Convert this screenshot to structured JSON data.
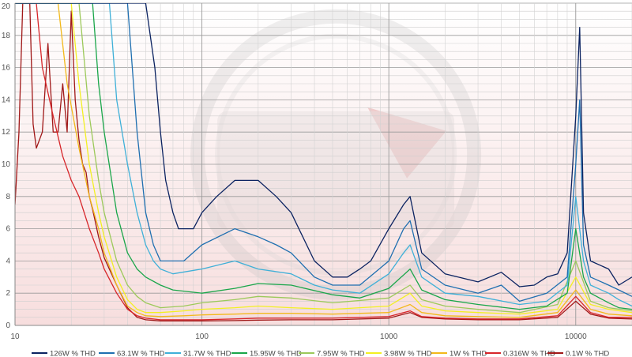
{
  "chart_data": {
    "type": "line",
    "title": "",
    "xlabel": "",
    "ylabel": "",
    "x_scale": "log",
    "xlim": [
      10,
      20000
    ],
    "ylim": [
      0,
      20
    ],
    "grid": true,
    "legend_position": "bottom",
    "x_ticks": [
      {
        "value": 10,
        "label": "10"
      },
      {
        "value": 100,
        "label": "100"
      },
      {
        "value": 1000,
        "label": "1000"
      },
      {
        "value": 10000,
        "label": "10000"
      }
    ],
    "y_ticks": [
      {
        "value": 0,
        "label": "0"
      },
      {
        "value": 2,
        "label": "2"
      },
      {
        "value": 4,
        "label": "4"
      },
      {
        "value": 6,
        "label": "6"
      },
      {
        "value": 8,
        "label": "8"
      },
      {
        "value": 10,
        "label": "10"
      },
      {
        "value": 12,
        "label": "12"
      },
      {
        "value": 14,
        "label": "14"
      },
      {
        "value": 16,
        "label": "16"
      },
      {
        "value": 18,
        "label": "18"
      },
      {
        "value": 20,
        "label": "20"
      }
    ],
    "series": [
      {
        "name": "126W % THD",
        "color": "#0b2361",
        "x": [
          10,
          50,
          56,
          60,
          64,
          70,
          75,
          80,
          90,
          100,
          120,
          150,
          200,
          250,
          300,
          400,
          500,
          600,
          700,
          800,
          1000,
          1200,
          1300,
          1500,
          2000,
          3000,
          4000,
          5000,
          6000,
          7000,
          8000,
          9000,
          10000,
          10500,
          11000,
          12000,
          15000,
          17000,
          20000
        ],
        "y": [
          20,
          20,
          16,
          12,
          9,
          7,
          6,
          6,
          6,
          7,
          8,
          9,
          9,
          8,
          7,
          4,
          3,
          3,
          3.5,
          4,
          6,
          7.5,
          8,
          4.5,
          3.2,
          2.7,
          3.3,
          2.4,
          2.5,
          3,
          3.2,
          4.5,
          13,
          18.5,
          7,
          4,
          3.5,
          2.5,
          3
        ]
      },
      {
        "name": "63.1W % THD",
        "color": "#1f6fb0",
        "x": [
          10,
          40,
          45,
          50,
          55,
          60,
          70,
          80,
          100,
          150,
          200,
          250,
          300,
          400,
          500,
          700,
          1000,
          1200,
          1300,
          1500,
          2000,
          3000,
          4000,
          5000,
          7000,
          9000,
          10000,
          10500,
          11000,
          12000,
          15000,
          17000,
          20000
        ],
        "y": [
          20,
          20,
          12,
          7,
          5,
          4,
          4,
          4,
          5,
          6,
          5.5,
          5,
          4.5,
          3,
          2.5,
          2.5,
          4,
          6,
          6.5,
          3.5,
          2.5,
          2,
          2.5,
          1.5,
          2,
          3,
          10,
          14,
          5,
          3,
          2.5,
          2.2,
          1.8
        ]
      },
      {
        "name": "31.7W % THD",
        "color": "#3fb0d8",
        "x": [
          10,
          32,
          35,
          40,
          45,
          50,
          55,
          60,
          70,
          100,
          150,
          200,
          300,
          400,
          500,
          700,
          1000,
          1200,
          1300,
          1500,
          2000,
          3000,
          5000,
          7000,
          9000,
          10000,
          11000,
          12000,
          15000,
          17000,
          20000
        ],
        "y": [
          20,
          20,
          14,
          10,
          7,
          5,
          4,
          3.5,
          3.2,
          3.5,
          4,
          3.5,
          3.2,
          2.5,
          2.2,
          2,
          3.2,
          4.5,
          5,
          3,
          2,
          1.8,
          1.3,
          1.5,
          2.5,
          8,
          4,
          2.5,
          2,
          1.6,
          1.2
        ]
      },
      {
        "name": "15.95W % THD",
        "color": "#1aa64a",
        "x": [
          10,
          26,
          28,
          30,
          35,
          40,
          45,
          50,
          60,
          70,
          100,
          150,
          200,
          300,
          500,
          700,
          1000,
          1300,
          1500,
          2000,
          3000,
          5000,
          7000,
          9000,
          10000,
          11000,
          12000,
          15000,
          17000,
          20000
        ],
        "y": [
          20,
          20,
          15,
          12,
          7,
          4.5,
          3.5,
          3,
          2.5,
          2.2,
          2,
          2.3,
          2.6,
          2.5,
          1.9,
          1.7,
          2.3,
          3.5,
          2.2,
          1.6,
          1.3,
          1,
          1.2,
          2,
          6,
          3,
          2,
          1.4,
          1.1,
          1
        ]
      },
      {
        "name": "7.95W % THD",
        "color": "#9cc95a",
        "x": [
          10,
          22,
          25,
          28,
          30,
          35,
          40,
          45,
          50,
          60,
          80,
          100,
          150,
          200,
          300,
          500,
          1000,
          1300,
          1500,
          2000,
          3000,
          5000,
          8000,
          10000,
          12000,
          15000,
          20000
        ],
        "y": [
          20,
          20,
          13,
          9,
          7,
          4,
          2.5,
          1.8,
          1.4,
          1.1,
          1.2,
          1.4,
          1.6,
          1.8,
          1.7,
          1.4,
          1.7,
          2.5,
          1.6,
          1.2,
          1,
          0.8,
          1.3,
          4,
          1.5,
          1.1,
          0.9
        ]
      },
      {
        "name": "3.98W % THD",
        "color": "#f2f022",
        "x": [
          10,
          20,
          22,
          25,
          28,
          30,
          35,
          40,
          45,
          50,
          60,
          80,
          100,
          150,
          200,
          300,
          500,
          1000,
          1300,
          1500,
          2000,
          3000,
          5000,
          8000,
          10000,
          12000,
          15000,
          20000
        ],
        "y": [
          20,
          20,
          15,
          10,
          7,
          5.5,
          3,
          1.6,
          1,
          0.8,
          0.8,
          0.9,
          1,
          1.1,
          1.2,
          1.1,
          1,
          1.2,
          2,
          1.2,
          0.9,
          0.8,
          0.7,
          1,
          3,
          1.3,
          1,
          0.8
        ]
      },
      {
        "name": "1W % THD",
        "color": "#f2b91c",
        "x": [
          10,
          17,
          19,
          22,
          25,
          28,
          30,
          35,
          40,
          45,
          50,
          60,
          80,
          100,
          150,
          200,
          300,
          500,
          1000,
          1300,
          1500,
          2000,
          3000,
          5000,
          8000,
          10000,
          12000,
          15000,
          20000
        ],
        "y": [
          20,
          20,
          15,
          11,
          8,
          6,
          4.5,
          2.5,
          1.2,
          0.8,
          0.6,
          0.55,
          0.6,
          0.65,
          0.7,
          0.75,
          0.75,
          0.7,
          0.8,
          1.3,
          0.8,
          0.6,
          0.55,
          0.5,
          0.8,
          2.2,
          1,
          0.7,
          0.6
        ]
      },
      {
        "name": "0.316W % THD",
        "color": "#d7262a",
        "x": [
          10,
          13,
          14,
          16,
          18,
          20,
          22,
          25,
          28,
          30,
          35,
          40,
          45,
          50,
          60,
          80,
          100,
          150,
          200,
          300,
          500,
          1000,
          1300,
          1500,
          2000,
          3000,
          5000,
          8000,
          10000,
          12000,
          15000,
          20000
        ],
        "y": [
          20,
          20,
          16,
          13,
          10.5,
          9,
          8,
          6,
          4.5,
          3.5,
          2,
          1,
          0.6,
          0.45,
          0.35,
          0.35,
          0.35,
          0.4,
          0.45,
          0.45,
          0.45,
          0.55,
          0.9,
          0.55,
          0.45,
          0.4,
          0.4,
          0.6,
          1.8,
          0.8,
          0.5,
          0.5
        ]
      },
      {
        "name": "0.1W % THD",
        "color": "#a01818",
        "x": [
          10,
          10.5,
          11,
          12,
          12.5,
          13,
          14,
          15,
          16,
          17,
          18,
          19,
          20,
          21,
          22,
          23,
          24,
          25,
          26,
          28,
          30,
          35,
          40,
          45,
          50,
          60,
          80,
          100,
          150,
          200,
          300,
          500,
          1000,
          1300,
          1500,
          2000,
          3000,
          5000,
          8000,
          10000,
          12000,
          15000,
          20000
        ],
        "y": [
          7.5,
          12,
          20,
          20,
          12.5,
          11,
          12,
          17.5,
          12,
          12,
          15,
          12,
          19.5,
          14,
          11.5,
          10,
          9.5,
          8,
          7.2,
          5.5,
          4.2,
          2.5,
          1.1,
          0.5,
          0.35,
          0.28,
          0.28,
          0.28,
          0.3,
          0.33,
          0.35,
          0.35,
          0.45,
          0.8,
          0.5,
          0.4,
          0.35,
          0.35,
          0.5,
          1.5,
          0.7,
          0.45,
          0.4
        ]
      }
    ]
  }
}
